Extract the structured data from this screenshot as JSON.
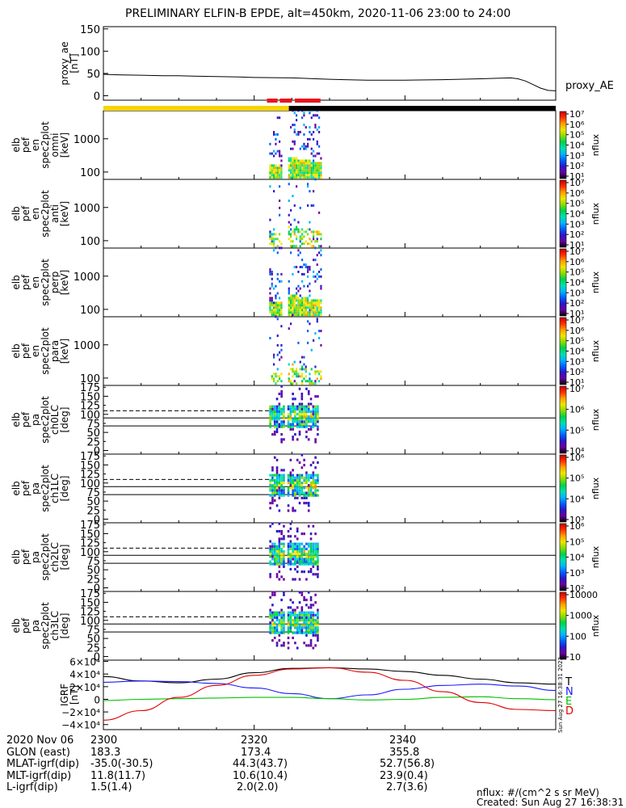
{
  "title": "PRELIMINARY ELFIN-B EPDE, alt=450km, 2020-11-06 23:00 to 24:00",
  "credit": {
    "units": "nflux: #/(cm^2 s sr MeV)",
    "created": "Created: Sun Aug 27 16:38:31 2023",
    "side_stamp": "Sun Aug 27 16:38:31 2023"
  },
  "colors": {
    "bar_yellow": "#f5d400",
    "bar_red": "#e8141c",
    "cb_stops": [
      "#000000",
      "#6a00a0",
      "#2a18c8",
      "#0060ff",
      "#00b4ff",
      "#00e0b0",
      "#00d24a",
      "#8cdc00",
      "#f0e600",
      "#ffa000",
      "#ff3000",
      "#c80000"
    ],
    "T": "#000000",
    "N": "#1a1aff",
    "E": "#00c000",
    "D": "#e00000"
  },
  "chart_data": [
    {
      "id": "proxy_ae",
      "type": "line",
      "ylabel": [
        "proxy_ae",
        "[nT]"
      ],
      "legend": "proxy_AE",
      "ylim": [
        -10,
        155
      ],
      "yticks": [
        0,
        50,
        100,
        150
      ],
      "yticklabels": [
        "0",
        "50",
        "100",
        "150"
      ],
      "x": [
        0,
        2,
        5,
        8,
        10,
        12,
        15,
        18,
        20,
        25,
        30,
        32,
        35,
        40,
        45,
        50,
        54,
        55,
        56,
        57,
        58,
        59,
        60
      ],
      "values": [
        48,
        47,
        46,
        45,
        45,
        44,
        43,
        42,
        41,
        40,
        37,
        36,
        35,
        35,
        36,
        38,
        40,
        38,
        33,
        25,
        17,
        12,
        11
      ]
    },
    {
      "id": "epd_ant",
      "type": "heatmap",
      "ylabel": [
        "elb",
        "pef",
        "en",
        "spec2plot",
        "omni",
        "[keV]"
      ],
      "yscale": "log",
      "ylim": [
        60,
        7000
      ],
      "yticks": [
        100,
        1000
      ],
      "yticklabels": [
        "100",
        "1000"
      ],
      "colorbar": {
        "label": "nflux",
        "scale": "log",
        "ticks": [
          "10¹",
          "10²",
          "10³",
          "10⁴",
          "10⁵",
          "10⁶",
          "10⁷"
        ]
      }
    },
    {
      "id": "epd_anti",
      "type": "heatmap",
      "ylabel": [
        "elb",
        "pef",
        "en",
        "spec2plot",
        "anti",
        "[keV]"
      ],
      "yscale": "log",
      "ylim": [
        60,
        7000
      ],
      "yticks": [
        100,
        1000
      ],
      "yticklabels": [
        "100",
        "1000"
      ],
      "colorbar": {
        "label": "nflux",
        "scale": "log",
        "ticks": [
          "10¹",
          "10²",
          "10³",
          "10⁴",
          "10⁵",
          "10⁶",
          "10⁷"
        ]
      }
    },
    {
      "id": "epd_perp",
      "type": "heatmap",
      "ylabel": [
        "elb",
        "pef",
        "en",
        "spec2plot",
        "perp",
        "[keV]"
      ],
      "yscale": "log",
      "ylim": [
        60,
        7000
      ],
      "yticks": [
        100,
        1000
      ],
      "yticklabels": [
        "100",
        "1000"
      ],
      "colorbar": {
        "label": "nflux",
        "scale": "log",
        "ticks": [
          "10¹",
          "10²",
          "10³",
          "10⁴",
          "10⁵",
          "10⁶",
          "10⁷"
        ]
      }
    },
    {
      "id": "epd_para",
      "type": "heatmap",
      "ylabel": [
        "elb",
        "pef",
        "en",
        "spec2plot",
        "para",
        "[keV]"
      ],
      "yscale": "log",
      "ylim": [
        60,
        7000
      ],
      "yticks": [
        100,
        1000
      ],
      "yticklabels": [
        "100",
        "1000"
      ],
      "colorbar": {
        "label": "nflux",
        "scale": "log",
        "ticks": [
          "10¹",
          "10²",
          "10³",
          "10⁴",
          "10⁵",
          "10⁶",
          "10⁷"
        ]
      }
    },
    {
      "id": "pa_ch0",
      "type": "heatmap",
      "ylabel": [
        "elb",
        "pef",
        "pa",
        "spec2plot",
        "ch0LC",
        "[deg]"
      ],
      "ylim": [
        -10,
        180
      ],
      "yticks": [
        0,
        50,
        100,
        150
      ],
      "yticklabels": [
        "0",
        "50",
        "100",
        "150"
      ],
      "yticks_minor": [
        25,
        75,
        125,
        175
      ],
      "yticklabels_minor": [
        "25",
        "75",
        "125",
        "175"
      ],
      "colorbar": {
        "label": "nflux",
        "scale": "log",
        "ticks": [
          "10⁴",
          "10⁵",
          "10⁶",
          "10⁷"
        ]
      }
    },
    {
      "id": "pa_ch1",
      "type": "heatmap",
      "ylabel": [
        "elb",
        "pef",
        "pa",
        "spec2plot",
        "ch1LC",
        "[deg]"
      ],
      "ylim": [
        -10,
        180
      ],
      "yticks": [
        0,
        50,
        100,
        150
      ],
      "yticklabels": [
        "0",
        "50",
        "100",
        "150"
      ],
      "yticks_minor": [
        25,
        75,
        125,
        175
      ],
      "yticklabels_minor": [
        "25",
        "75",
        "125",
        "175"
      ],
      "colorbar": {
        "label": "nflux",
        "scale": "log",
        "ticks": [
          "10³",
          "10⁴",
          "10⁵",
          "10⁶"
        ]
      }
    },
    {
      "id": "pa_ch2",
      "type": "heatmap",
      "ylabel": [
        "elb",
        "pef",
        "pa",
        "spec2plot",
        "ch2LC",
        "[deg]"
      ],
      "ylim": [
        -10,
        180
      ],
      "yticks": [
        0,
        50,
        100,
        150
      ],
      "yticklabels": [
        "0",
        "50",
        "100",
        "150"
      ],
      "yticks_minor": [
        25,
        75,
        125,
        175
      ],
      "yticklabels_minor": [
        "25",
        "75",
        "125",
        "175"
      ],
      "colorbar": {
        "label": "nflux",
        "scale": "log",
        "ticks": [
          "10²",
          "10³",
          "10⁴",
          "10⁵",
          "10⁶"
        ]
      }
    },
    {
      "id": "pa_ch3",
      "type": "heatmap",
      "ylabel": [
        "elb",
        "pef",
        "pa",
        "spec2plot",
        "ch3LC",
        "[deg]"
      ],
      "ylim": [
        -10,
        180
      ],
      "yticks": [
        0,
        50,
        100,
        150
      ],
      "yticklabels": [
        "0",
        "50",
        "100",
        "150"
      ],
      "yticks_minor": [
        25,
        75,
        125,
        175
      ],
      "yticklabels_minor": [
        "25",
        "75",
        "125",
        "175"
      ],
      "colorbar": {
        "label": "nflux",
        "scale": "linear",
        "ticks": [
          "10",
          "100",
          "1000",
          "10000"
        ]
      }
    },
    {
      "id": "igrf",
      "type": "line",
      "ylabel": [
        "IGRF",
        "[nT]"
      ],
      "ylim": [
        -48000,
        62000
      ],
      "yticks": [
        -40000,
        -20000,
        0,
        20000,
        40000,
        60000
      ],
      "yticklabels": [
        "−4×10⁴",
        "−2×10⁴",
        "0",
        "2×10⁴",
        "4×10⁴",
        "6×10⁴"
      ],
      "x": [
        0,
        5,
        10,
        15,
        20,
        25,
        30,
        35,
        40,
        45,
        50,
        55,
        60
      ],
      "series": [
        {
          "name": "T",
          "values": [
            36000,
            29000,
            26000,
            32000,
            42000,
            49000,
            50000,
            48000,
            44000,
            38000,
            32000,
            26000,
            24000
          ]
        },
        {
          "name": "N",
          "values": [
            27000,
            29000,
            28000,
            25000,
            18000,
            9000,
            1000,
            7000,
            16000,
            22000,
            24000,
            21000,
            14000
          ]
        },
        {
          "name": "E",
          "values": [
            -2000,
            0,
            1000,
            2000,
            3000,
            3000,
            1000,
            -1000,
            0,
            3000,
            4000,
            1000,
            -500
          ]
        },
        {
          "name": "D",
          "values": [
            -33000,
            -18000,
            3000,
            22000,
            38000,
            48000,
            50000,
            43000,
            30000,
            12000,
            -5000,
            -16000,
            -18000
          ]
        }
      ]
    }
  ],
  "bands": {
    "start": 23.0,
    "end": 24.0
  },
  "footer": {
    "rows": [
      [
        "2020 Nov 06",
        "2300",
        "2320",
        "2340"
      ],
      [
        "GLON (east)",
        "183.3",
        "173.4",
        "355.8"
      ],
      [
        "MLAT-igrf(dip)",
        "-35.0(-30.5)",
        "44.3(43.7)",
        "52.7(56.8)"
      ],
      [
        "MLT-igrf(dip)",
        "11.8(11.7)",
        "10.6(10.4)",
        "23.9(0.4)"
      ],
      [
        "L-igrf(dip)",
        "1.5(1.4)",
        "2.0(2.0)",
        "2.7(3.6)"
      ]
    ]
  }
}
